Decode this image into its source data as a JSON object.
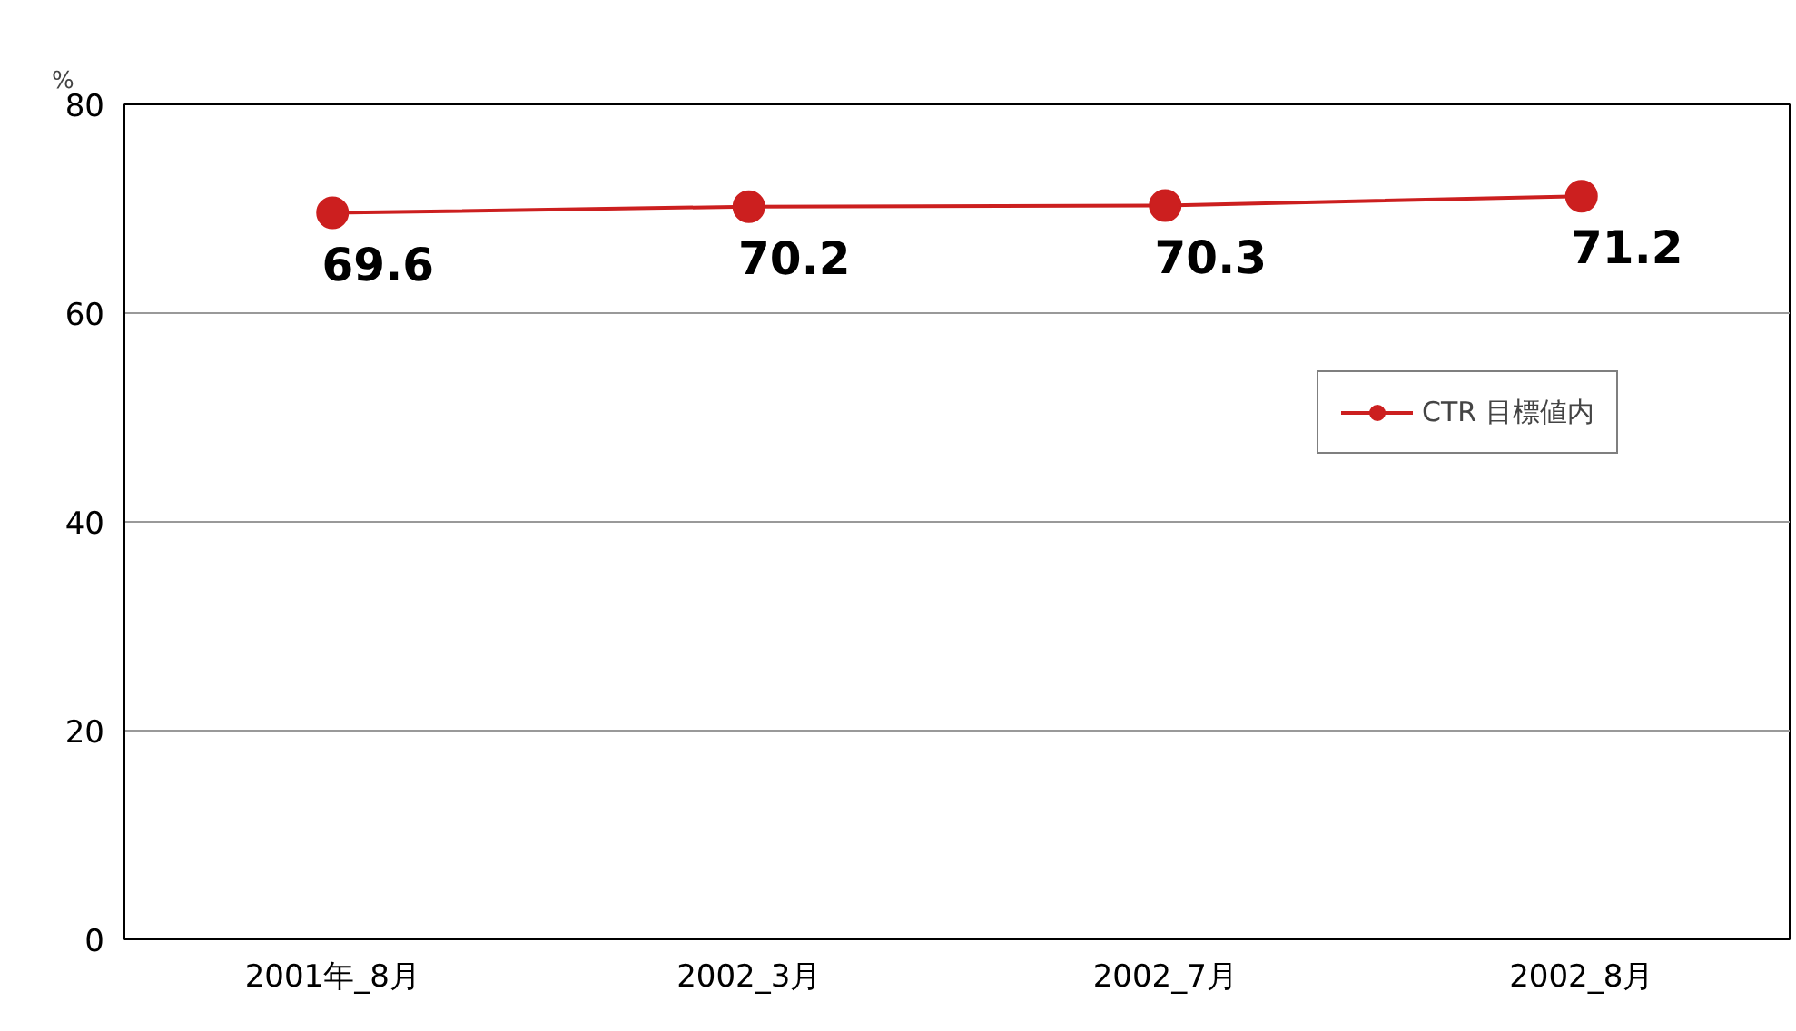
{
  "chart_data": {
    "type": "line",
    "ylabel": "%",
    "categories": [
      "2001年_8月",
      "2002_3月",
      "2002_7月",
      "2002_8月"
    ],
    "series": [
      {
        "name": "CTR 目標値内",
        "color": "#cc1f1f",
        "values": [
          69.6,
          70.2,
          70.3,
          71.2
        ]
      }
    ],
    "ylim": [
      0,
      80
    ],
    "yticks": [
      0,
      20,
      40,
      60,
      80
    ],
    "grid": "y",
    "legend": "top right",
    "marker": "circle",
    "line_style": "solid",
    "data_labels": true
  }
}
